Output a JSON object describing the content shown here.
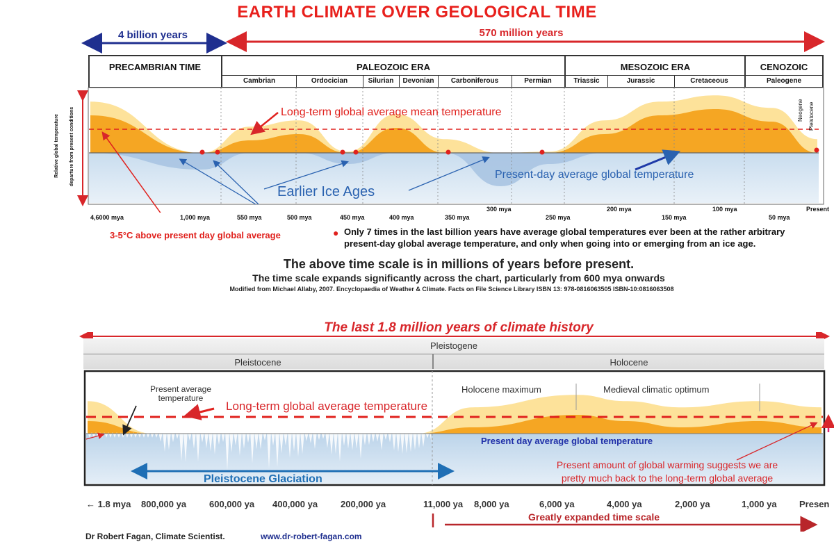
{
  "title": "EARTH CLIMATE OVER GEOLOGICAL TIME",
  "span_left": "4 billion years",
  "span_right": "570 million years",
  "eras": [
    "PRECAMBRIAN TIME",
    "PALEOZOIC ERA",
    "MESOZOIC ERA",
    "CENOZOIC"
  ],
  "periods": [
    "Cambrian",
    "Ordocician",
    "Silurian",
    "Devonian",
    "Carboniferous",
    "Permian",
    "Triassic",
    "Jurassic",
    "Cretaceous",
    "Paleogene"
  ],
  "neogene": "Neogene",
  "pleistocene_vert": "Pleistocene",
  "y_axis_label_1": "Relative global temperature",
  "y_axis_label_2": "departure from present conditions",
  "chart1_mean_label": "Long-term global average mean temperature",
  "chart1_present_label": "Present-day average global temperature",
  "chart1_ice_label": "Earlier Ice Ages",
  "x_ticks_1": [
    "4,6000 mya",
    "1,000 mya",
    "550 mya",
    "500 mya",
    "450 mya",
    "400 mya",
    "350 mya",
    "300 mya",
    "250 mya",
    "200 mya",
    "150 mya",
    "100 mya",
    "50 mya",
    "Present"
  ],
  "above_avg_note": "3-5°C above present day global average",
  "dot_note_1": "Only 7 times in the last billion years have average global temperatures ever been at the rather arbitrary",
  "dot_note_2": "present-day global average temperature, and only when going into or emerging from an ice age.",
  "time_scale_note": "The above time scale is in millions of years before present.",
  "expand_note": "The time scale expands significantly across the chart, particularly from 600 mya onwards",
  "source_note": "Modified from Michael Allaby, 2007. Encyclopaedia of Weather & Climate. Facts on File Science Library  ISBN 13: 978-0816063505    ISBN-10:0816063508",
  "chart2_title": "The last 1.8 million years of climate history",
  "pleistogene": "Pleistogene",
  "pleistocene": "Pleistocene",
  "holocene": "Holocene",
  "present_avg_temp_1": "Present average",
  "present_avg_temp_2": "temperature",
  "chart2_longterm_label": "Long-term global average temperature",
  "holocene_max": "Holocene maximum",
  "medieval_opt": "Medieval climatic optimum",
  "chart2_present_label": "Present day average global temperature",
  "glaciation_label": "Pleistocene Glaciation",
  "warming_note_1": "Present amount of global warming suggests we are",
  "warming_note_2": "pretty much back to the long-term global average",
  "x_ticks_2": [
    "1.8 mya",
    "800,000 ya",
    "600,000 ya",
    "400,000 ya",
    "200,000 ya",
    "11,000 ya",
    "8,000 ya",
    "6,000 ya",
    "4,000 ya",
    "2,000 ya",
    "1,000 ya",
    "Presen"
  ],
  "expanded_scale": "Greatly expanded time scale",
  "author": "Dr Robert Fagan, Climate Scientist.",
  "website": "www.dr-robert-fagan.com",
  "colors": {
    "title_red": "#e8201c",
    "warm_orange": "#f5a623",
    "warm_light": "#fde29a",
    "cold_blue": "#b9d3ea",
    "navy": "#1f2f8f",
    "blue_text": "#2a62b0"
  },
  "chart_data": [
    {
      "type": "area",
      "title": "EARTH CLIMATE OVER GEOLOGICAL TIME",
      "xlabel": "",
      "ylabel": "Relative global temperature departure from present conditions",
      "x": [
        "4,6000 mya",
        "1,000 mya",
        "550 mya",
        "500 mya",
        "450 mya",
        "400 mya",
        "350 mya",
        "300 mya",
        "250 mya",
        "200 mya",
        "150 mya",
        "100 mya",
        "50 mya",
        "Present"
      ],
      "series": [
        {
          "values": [
            6,
            -3,
            2,
            3,
            -2,
            4,
            0,
            -6,
            -2,
            3,
            6,
            7,
            5,
            0
          ]
        }
      ],
      "grid": false
    },
    {
      "type": "area",
      "title": "The last 1.8 million years of climate history",
      "xlabel": "",
      "ylabel": "",
      "x": [
        "1.8 mya",
        "800,000 ya",
        "600,000 ya",
        "400,000 ya",
        "200,000 ya",
        "11,000 ya",
        "8,000 ya",
        "6,000 ya",
        "4,000 ya",
        "2,000 ya",
        "1,000 ya",
        "Presen"
      ],
      "series": [
        {
          "values": [
            1,
            -3,
            -4,
            -3,
            -2,
            -4,
            0.5,
            1.5,
            1,
            0.5,
            1,
            0.5
          ]
        }
      ],
      "grid": false
    }
  ]
}
